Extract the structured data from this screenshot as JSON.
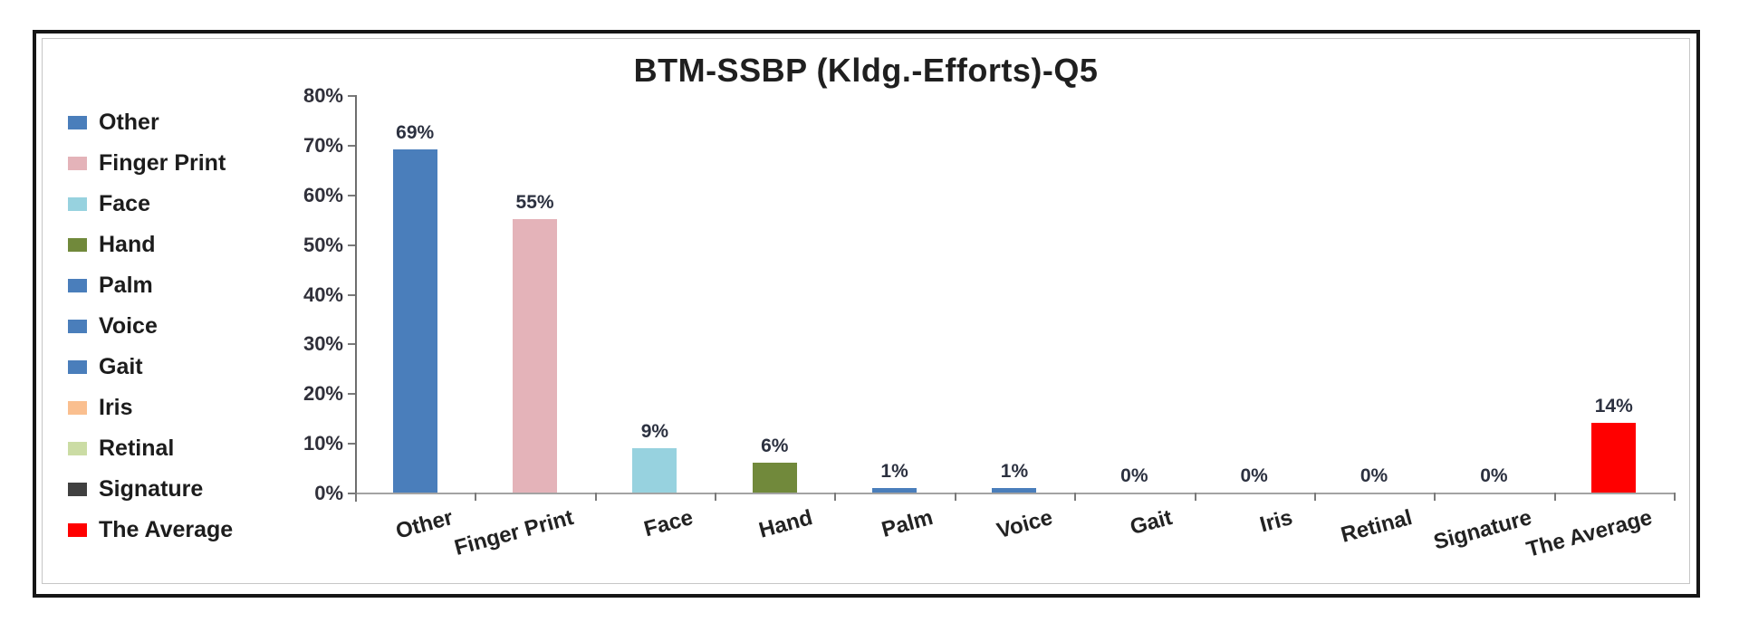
{
  "chart_data": {
    "type": "bar",
    "title": "BTM-SSBP (Kldg.-Efforts)-Q5",
    "categories": [
      "Other",
      "Finger Print",
      "Face",
      "Hand",
      "Palm",
      "Voice",
      "Gait",
      "Iris",
      "Retinal",
      "Signature",
      "The Average"
    ],
    "values": [
      69,
      55,
      9,
      6,
      1,
      1,
      0,
      0,
      0,
      0,
      14
    ],
    "data_labels": [
      "69%",
      "55%",
      "9%",
      "6%",
      "1%",
      "1%",
      "0%",
      "0%",
      "0%",
      "0%",
      "14%"
    ],
    "bar_colors": [
      "#4A7EBB",
      "#E4B3B9",
      "#97D2DF",
      "#71893B",
      "#4A7EBB",
      "#4A7EBB",
      "#4A7EBB",
      "#FABF8F",
      "#CBDCA4",
      "#404040",
      "#FF0000"
    ],
    "legend_position": "left",
    "legend": [
      {
        "label": "Other",
        "color": "#4A7EBB"
      },
      {
        "label": "Finger Print",
        "color": "#E4B3B9"
      },
      {
        "label": "Face",
        "color": "#97D2DF"
      },
      {
        "label": "Hand",
        "color": "#71893B"
      },
      {
        "label": "Palm",
        "color": "#4A7EBB"
      },
      {
        "label": "Voice",
        "color": "#4A7EBB"
      },
      {
        "label": "Gait",
        "color": "#4A7EBB"
      },
      {
        "label": "Iris",
        "color": "#FABF8F"
      },
      {
        "label": "Retinal",
        "color": "#CBDCA4"
      },
      {
        "label": "Signature",
        "color": "#404040"
      },
      {
        "label": "The Average",
        "color": "#FF0000"
      }
    ],
    "xlabel": "",
    "ylabel": "",
    "ylim": [
      0,
      80
    ],
    "ytick_step": 10,
    "yticks": [
      "0%",
      "10%",
      "20%",
      "30%",
      "40%",
      "50%",
      "60%",
      "70%",
      "80%"
    ],
    "grid": false
  }
}
